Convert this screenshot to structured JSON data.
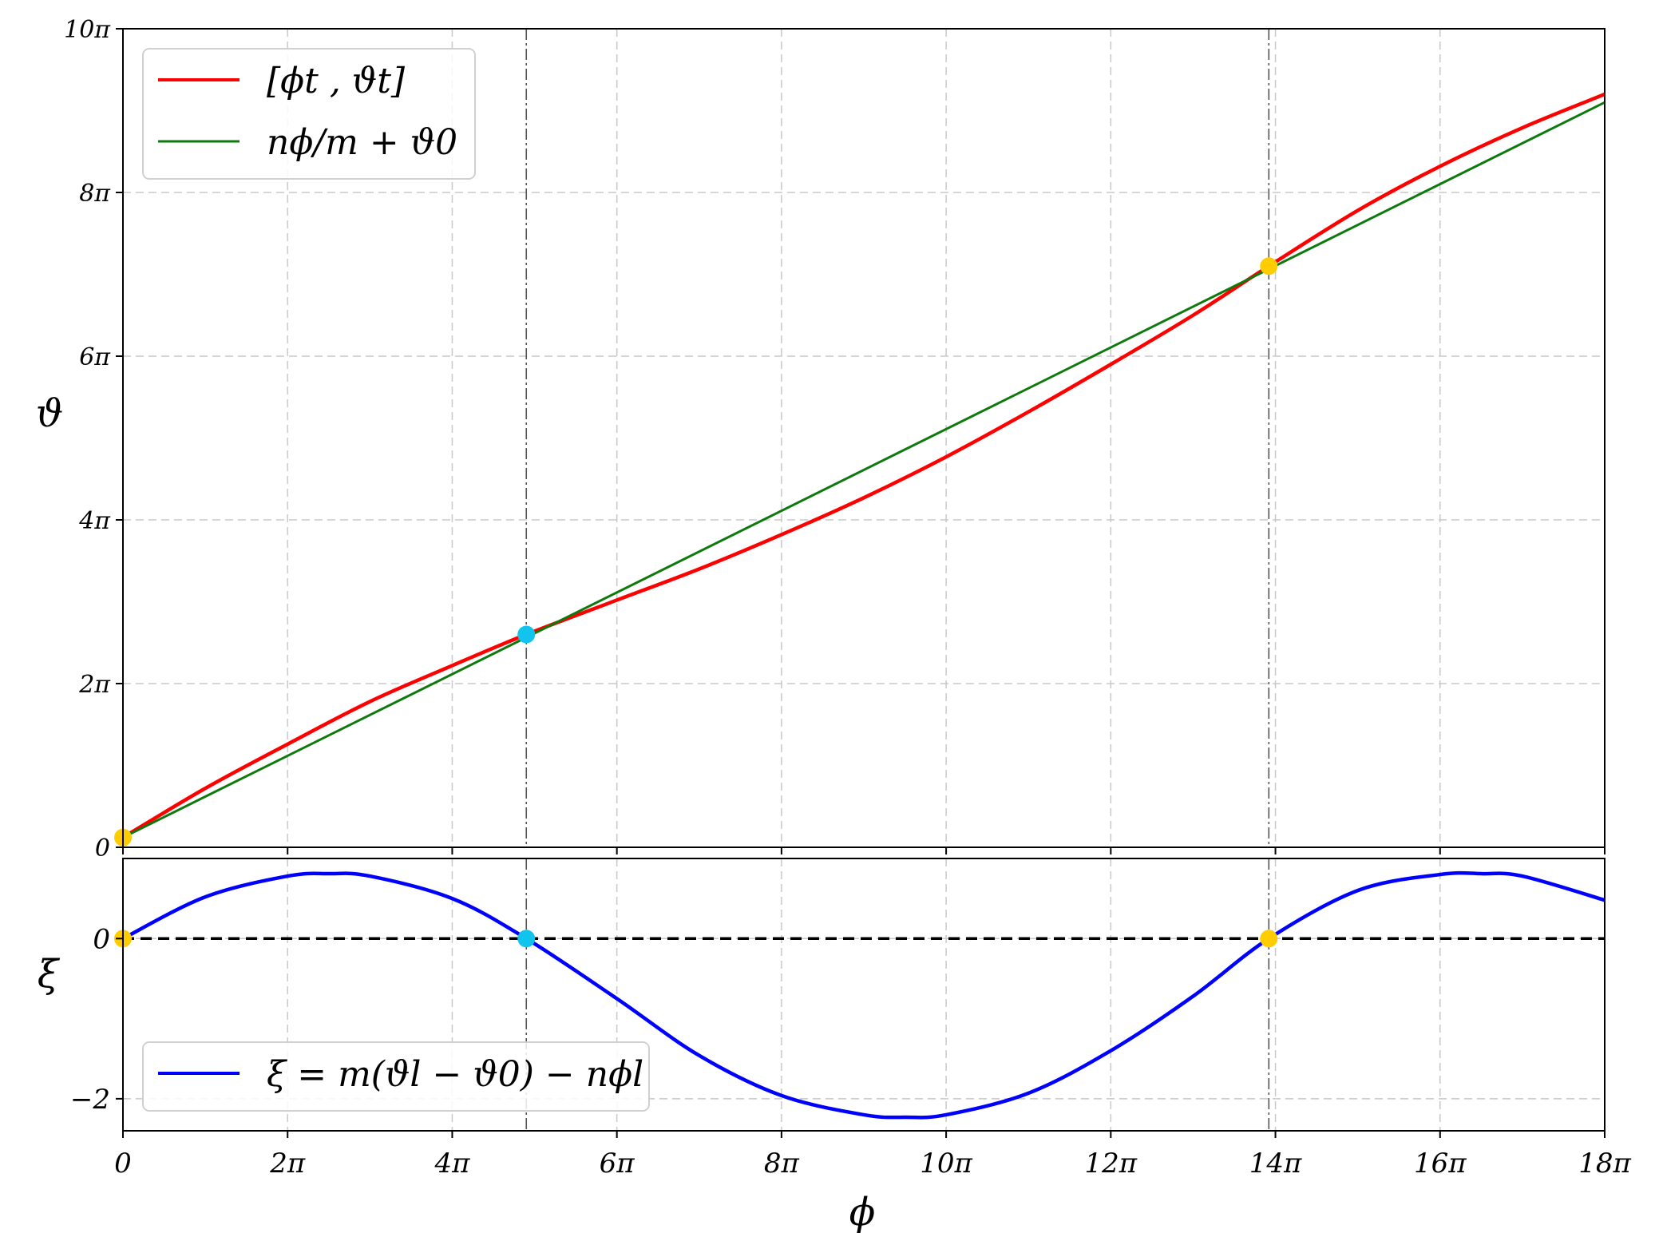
{
  "colors": {
    "trajectory": "#ff0000",
    "linear_fit": "#0e7a0d",
    "xi": "#0000ff",
    "point_yellow": "#ffcc00",
    "point_cyan": "#11c4ee",
    "grid": "#c8c8c8"
  },
  "chart_data": [
    {
      "type": "line",
      "panel": "top",
      "xlabel": "",
      "ylabel": "ϑ",
      "xlim_pi": [
        0,
        18
      ],
      "ylim_pi": [
        0,
        10
      ],
      "y_ticks": [
        {
          "value_pi": 0,
          "label": "0"
        },
        {
          "value_pi": 2,
          "label": "2π"
        },
        {
          "value_pi": 4,
          "label": "4π"
        },
        {
          "value_pi": 6,
          "label": "6π"
        },
        {
          "value_pi": 8,
          "label": "8π"
        },
        {
          "value_pi": 10,
          "label": "10π"
        }
      ],
      "grid": true,
      "legend_position": "top-left",
      "vertical_markers_pi": [
        4.9,
        13.92
      ],
      "series": [
        {
          "name": "[ϕt , ϑt]",
          "color_key": "trajectory",
          "x_pi": [
            0,
            1,
            2,
            3,
            4,
            4.9,
            6,
            7,
            8,
            9,
            10,
            11,
            12,
            13,
            13.92,
            15,
            16,
            17,
            18
          ],
          "y_pi": [
            0.12,
            0.72,
            1.26,
            1.78,
            2.22,
            2.6,
            3.02,
            3.4,
            3.82,
            4.27,
            4.77,
            5.32,
            5.9,
            6.5,
            7.1,
            7.78,
            8.32,
            8.79,
            9.2
          ]
        },
        {
          "name": "nϕ/m + ϑ0",
          "color_key": "linear_fit",
          "x_pi": [
            0,
            18
          ],
          "y_pi": [
            0.12,
            9.1
          ]
        }
      ],
      "points": [
        {
          "x_pi": 0,
          "y_pi": 0.12,
          "color_key": "point_yellow"
        },
        {
          "x_pi": 4.9,
          "y_pi": 2.6,
          "color_key": "point_cyan"
        },
        {
          "x_pi": 13.92,
          "y_pi": 7.1,
          "color_key": "point_yellow"
        }
      ]
    },
    {
      "type": "line",
      "panel": "bottom",
      "xlabel": "ϕ",
      "ylabel": "ξ",
      "xlim_pi": [
        0,
        18
      ],
      "ylim": [
        -2.4,
        1.0
      ],
      "x_ticks": [
        {
          "value_pi": 0,
          "label": "0"
        },
        {
          "value_pi": 2,
          "label": "2π"
        },
        {
          "value_pi": 4,
          "label": "4π"
        },
        {
          "value_pi": 6,
          "label": "6π"
        },
        {
          "value_pi": 8,
          "label": "8π"
        },
        {
          "value_pi": 10,
          "label": "10π"
        },
        {
          "value_pi": 12,
          "label": "12π"
        },
        {
          "value_pi": 14,
          "label": "14π"
        },
        {
          "value_pi": 16,
          "label": "16π"
        },
        {
          "value_pi": 18,
          "label": "18π"
        }
      ],
      "y_ticks": [
        {
          "value": 0,
          "label": "0"
        },
        {
          "value": -2,
          "label": "−2"
        }
      ],
      "grid": true,
      "legend_position": "bottom-left",
      "zero_line": true,
      "vertical_markers_pi": [
        4.9,
        13.92
      ],
      "series": [
        {
          "name": "ξ = m(ϑl − ϑ0) − nϕl",
          "color_key": "xi",
          "x_pi": [
            0,
            1,
            2,
            2.5,
            3,
            4,
            4.9,
            6,
            7,
            8,
            9,
            9.5,
            10,
            11,
            12,
            13,
            13.92,
            15,
            16,
            16.5,
            17,
            18
          ],
          "y": [
            0.0,
            0.52,
            0.78,
            0.81,
            0.78,
            0.5,
            0.0,
            -0.75,
            -1.46,
            -1.96,
            -2.2,
            -2.23,
            -2.2,
            -1.93,
            -1.4,
            -0.72,
            0.0,
            0.6,
            0.8,
            0.81,
            0.78,
            0.48
          ]
        }
      ],
      "points": [
        {
          "x_pi": 0,
          "y": 0,
          "color_key": "point_yellow"
        },
        {
          "x_pi": 4.9,
          "y": 0,
          "color_key": "point_cyan"
        },
        {
          "x_pi": 13.92,
          "y": 0,
          "color_key": "point_yellow"
        }
      ]
    }
  ]
}
